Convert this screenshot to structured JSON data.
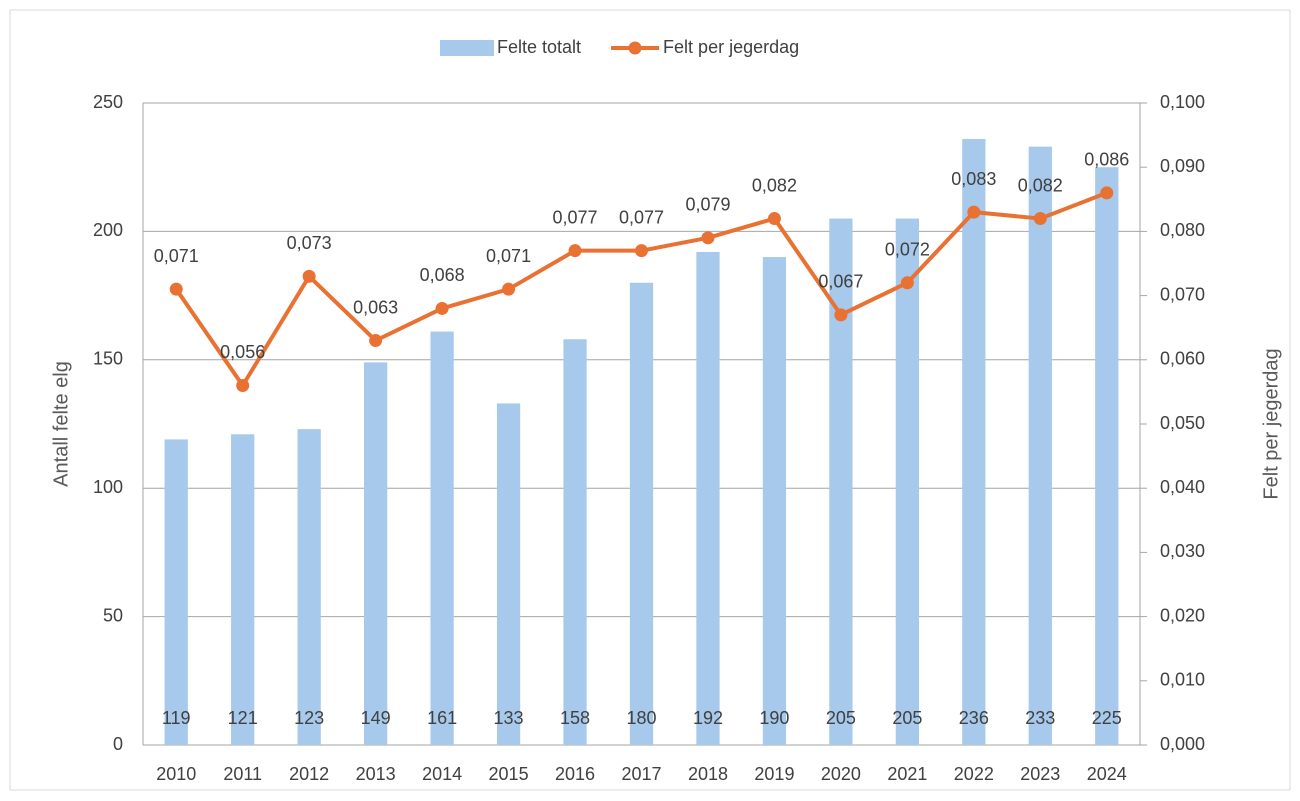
{
  "chart_data": {
    "type": "combo",
    "categories": [
      "2010",
      "2011",
      "2012",
      "2013",
      "2014",
      "2015",
      "2016",
      "2017",
      "2018",
      "2019",
      "2020",
      "2021",
      "2022",
      "2023",
      "2024"
    ],
    "series": [
      {
        "name": "Felte totalt",
        "type": "bar",
        "axis": "y",
        "color": "#a6c9ec",
        "values": [
          119,
          121,
          123,
          149,
          161,
          133,
          158,
          180,
          192,
          190,
          205,
          205,
          236,
          233,
          225
        ]
      },
      {
        "name": "Felt per jegerdag",
        "type": "line",
        "axis": "y2",
        "color": "#e97132",
        "values": [
          0.071,
          0.056,
          0.073,
          0.063,
          0.068,
          0.071,
          0.077,
          0.077,
          0.079,
          0.082,
          0.067,
          0.072,
          0.083,
          0.082,
          0.086
        ],
        "value_labels": [
          "0,071",
          "0,056",
          "0,073",
          "0,063",
          "0,068",
          "0,071",
          "0,077",
          "0,077",
          "0,079",
          "0,082",
          "0,067",
          "0,072",
          "0,083",
          "0,082",
          "0,086"
        ]
      }
    ],
    "ylabel": "Antall felte elg",
    "y2label": "Felt per jegerdag",
    "ylim": [
      0,
      250
    ],
    "yticks": [
      0,
      50,
      100,
      150,
      200,
      250
    ],
    "y2lim": [
      0,
      0.1
    ],
    "y2ticks": [
      {
        "value": 0,
        "label": "0,000"
      },
      {
        "value": 0.01,
        "label": "0,010"
      },
      {
        "value": 0.02,
        "label": "0,020"
      },
      {
        "value": 0.03,
        "label": "0,030"
      },
      {
        "value": 0.04,
        "label": "0,040"
      },
      {
        "value": 0.05,
        "label": "0,050"
      },
      {
        "value": 0.06,
        "label": "0,060"
      },
      {
        "value": 0.07,
        "label": "0,070"
      },
      {
        "value": 0.08,
        "label": "0,080"
      },
      {
        "value": 0.09,
        "label": "0,090"
      },
      {
        "value": 0.1,
        "label": "0,100"
      }
    ],
    "grid": true,
    "legend": "top"
  }
}
